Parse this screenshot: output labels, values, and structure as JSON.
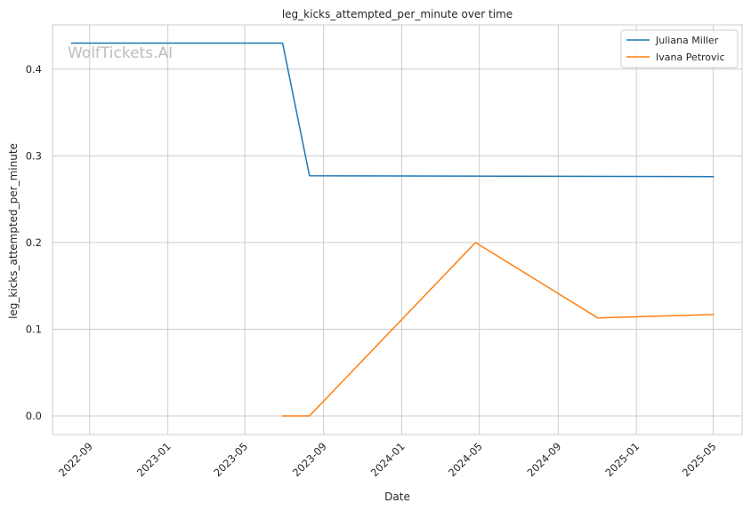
{
  "chart_data": {
    "type": "line",
    "title": "leg_kicks_attempted_per_minute over time",
    "xlabel": "Date",
    "ylabel": "leg_kicks_attempted_per_minute",
    "watermark": "WolfTickets.AI",
    "x_ticks": [
      "2022-09-01",
      "2023-01-01",
      "2023-05-01",
      "2023-09-01",
      "2024-01-01",
      "2024-05-01",
      "2024-09-01",
      "2025-01-01",
      "2025-05-01"
    ],
    "x_tick_labels": [
      "2022-09",
      "2023-01",
      "2023-05",
      "2023-09",
      "2024-01",
      "2024-05",
      "2024-09",
      "2025-01",
      "2025-05"
    ],
    "y_ticks": [
      0.0,
      0.1,
      0.2,
      0.3,
      0.4
    ],
    "y_tick_labels": [
      "0.0",
      "0.1",
      "0.2",
      "0.3",
      "0.4"
    ],
    "xlim": [
      "2022-07-05",
      "2025-06-15"
    ],
    "ylim": [
      -0.0215,
      0.451
    ],
    "grid": true,
    "legend_position": "top-right",
    "series": [
      {
        "name": "Juliana Miller",
        "color": "#1f77b4",
        "points": [
          {
            "x": "2022-08-04",
            "y": 0.43
          },
          {
            "x": "2023-06-29",
            "y": 0.43
          },
          {
            "x": "2023-08-10",
            "y": 0.277
          },
          {
            "x": "2025-05-01",
            "y": 0.276
          }
        ]
      },
      {
        "name": "Ivana Petrovic",
        "color": "#ff7f0e",
        "points": [
          {
            "x": "2023-06-29",
            "y": 0.0
          },
          {
            "x": "2023-08-10",
            "y": 0.0
          },
          {
            "x": "2024-04-25",
            "y": 0.2
          },
          {
            "x": "2024-11-02",
            "y": 0.113
          },
          {
            "x": "2025-05-01",
            "y": 0.117
          }
        ]
      }
    ]
  }
}
